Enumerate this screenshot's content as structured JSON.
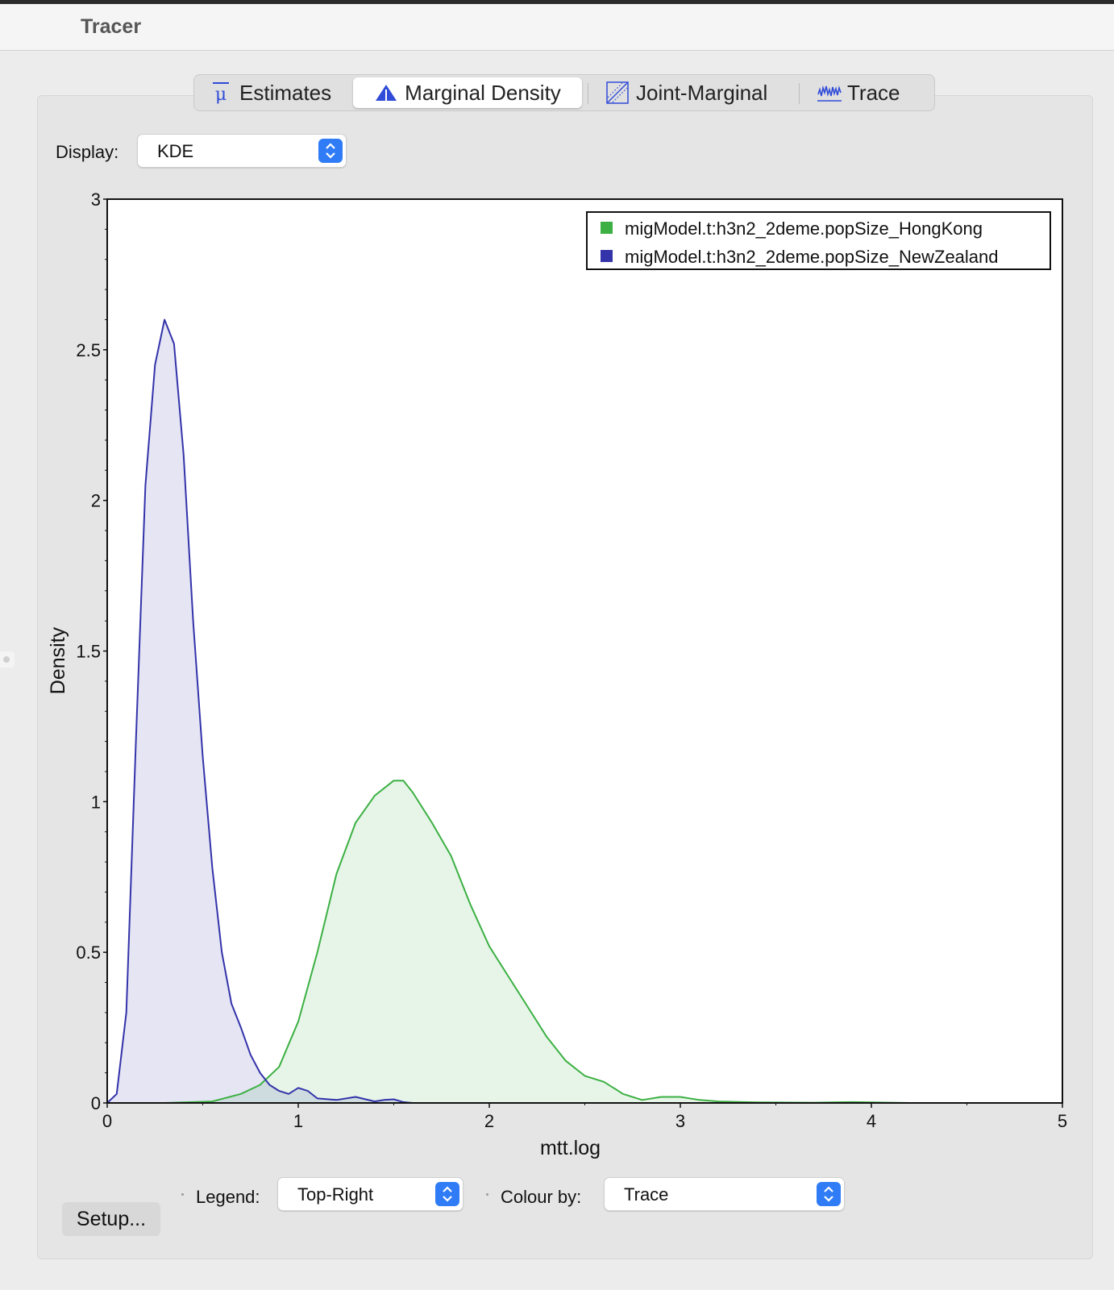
{
  "window": {
    "title": "Tracer"
  },
  "tabs": [
    {
      "label": "Estimates",
      "icon": "mu-bar-icon"
    },
    {
      "label": "Marginal Density",
      "icon": "density-peak-icon",
      "active": true
    },
    {
      "label": "Joint-Marginal",
      "icon": "joint-scatter-icon"
    },
    {
      "label": "Trace",
      "icon": "trace-icon"
    }
  ],
  "display": {
    "label": "Display:",
    "value": "KDE"
  },
  "bottom": {
    "setup_label": "Setup...",
    "legend_label": "Legend:",
    "legend_value": "Top-Right",
    "colour_label": "Colour by:",
    "colour_value": "Trace"
  },
  "colors": {
    "hongkong": "#3cb043",
    "newzealand": "#3333aa",
    "accent": "#2f7cf6"
  },
  "chart_data": {
    "type": "area",
    "xlabel": "mtt.log",
    "ylabel": "Density",
    "xlim": [
      0,
      5
    ],
    "ylim": [
      0,
      3
    ],
    "xticks": [
      "0",
      "1",
      "2",
      "3",
      "4",
      "5"
    ],
    "yticks": [
      "0",
      "0.5",
      "1",
      "1.5",
      "2",
      "2.5",
      "3"
    ],
    "legend_position": "top-right",
    "series": [
      {
        "name": "migModel.t:h3n2_2deme.popSize_HongKong",
        "color": "#3cb043",
        "x": [
          0.3,
          0.55,
          0.7,
          0.8,
          0.9,
          1.0,
          1.1,
          1.2,
          1.3,
          1.4,
          1.5,
          1.55,
          1.6,
          1.7,
          1.8,
          1.9,
          2.0,
          2.1,
          2.2,
          2.3,
          2.4,
          2.5,
          2.6,
          2.65,
          2.7,
          2.8,
          2.9,
          3.0,
          3.1,
          3.2,
          3.4,
          3.7,
          3.9,
          4.2
        ],
        "y": [
          0.0,
          0.005,
          0.03,
          0.06,
          0.12,
          0.27,
          0.5,
          0.76,
          0.93,
          1.02,
          1.07,
          1.07,
          1.03,
          0.93,
          0.82,
          0.66,
          0.52,
          0.42,
          0.32,
          0.22,
          0.14,
          0.09,
          0.07,
          0.05,
          0.03,
          0.01,
          0.02,
          0.02,
          0.01,
          0.005,
          0.002,
          0.001,
          0.003,
          0.0
        ]
      },
      {
        "name": "migModel.t:h3n2_2deme.popSize_NewZealand",
        "color": "#3333aa",
        "x": [
          0.0,
          0.05,
          0.1,
          0.15,
          0.2,
          0.25,
          0.3,
          0.35,
          0.4,
          0.45,
          0.5,
          0.55,
          0.6,
          0.65,
          0.7,
          0.75,
          0.8,
          0.85,
          0.9,
          0.95,
          1.0,
          1.05,
          1.1,
          1.2,
          1.3,
          1.4,
          1.45,
          1.5,
          1.55,
          1.6
        ],
        "y": [
          0.0,
          0.03,
          0.3,
          1.2,
          2.05,
          2.45,
          2.6,
          2.52,
          2.15,
          1.6,
          1.15,
          0.78,
          0.5,
          0.33,
          0.25,
          0.16,
          0.1,
          0.06,
          0.04,
          0.03,
          0.05,
          0.04,
          0.015,
          0.01,
          0.02,
          0.005,
          0.01,
          0.012,
          0.003,
          0.0
        ]
      }
    ]
  }
}
